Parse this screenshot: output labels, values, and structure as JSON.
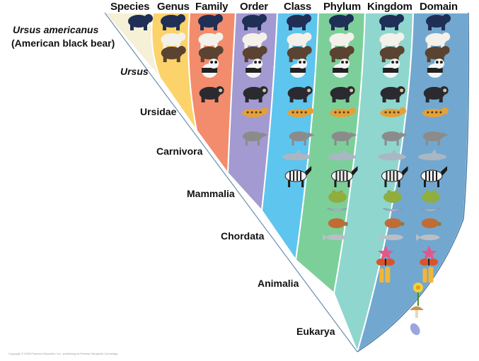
{
  "columns": [
    {
      "id": "species",
      "label": "Species",
      "color": "#f5f0d6"
    },
    {
      "id": "genus",
      "label": "Genus",
      "color": "#fcd36a"
    },
    {
      "id": "family",
      "label": "Family",
      "color": "#f28c6c"
    },
    {
      "id": "order",
      "label": "Order",
      "color": "#a39ad1"
    },
    {
      "id": "class",
      "label": "Class",
      "color": "#5ec5ee"
    },
    {
      "id": "phylum",
      "label": "Phylum",
      "color": "#7dcf9a"
    },
    {
      "id": "kingdom",
      "label": "Kingdom",
      "color": "#8fd6cf"
    },
    {
      "id": "domain",
      "label": "Domain",
      "color": "#72a8cf"
    }
  ],
  "ranks": [
    {
      "id": "species",
      "line1": "Ursus americanus",
      "line2": "(American black bear)",
      "italic": true
    },
    {
      "id": "genus",
      "line1": "Ursus",
      "italic": true
    },
    {
      "id": "family",
      "line1": "Ursidae",
      "italic": false
    },
    {
      "id": "order",
      "line1": "Carnivora",
      "italic": false
    },
    {
      "id": "class",
      "line1": "Mammalia",
      "italic": false
    },
    {
      "id": "phylum",
      "line1": "Chordata",
      "italic": false
    },
    {
      "id": "kingdom",
      "line1": "Animalia",
      "italic": false
    },
    {
      "id": "domain",
      "line1": "Eukarya",
      "italic": false
    }
  ],
  "organisms": [
    {
      "id": "black-bear",
      "color": "#1f2f55",
      "icon": "black-bear-icon"
    },
    {
      "id": "polar-bear",
      "color": "#f4f1ea",
      "icon": "polar-bear-icon"
    },
    {
      "id": "brown-bear",
      "color": "#5a4330",
      "icon": "brown-bear-icon"
    },
    {
      "id": "panda",
      "color": "#222222",
      "icon": "giant-panda-icon"
    },
    {
      "id": "spectacled-bear",
      "color": "#2a2a30",
      "icon": "spectacled-bear-icon"
    },
    {
      "id": "leopard",
      "color": "#e3a13a",
      "icon": "leopard-icon"
    },
    {
      "id": "wolf",
      "color": "#8b8b8b",
      "icon": "wolf-icon"
    },
    {
      "id": "dolphin",
      "color": "#a9b7c4",
      "icon": "dolphin-icon"
    },
    {
      "id": "zebra",
      "color": "#1b1b1b",
      "icon": "zebra-icon"
    },
    {
      "id": "frog",
      "color": "#8fae3e",
      "icon": "frog-icon"
    },
    {
      "id": "bird",
      "color": "#c9d3e6",
      "icon": "bird-icon"
    },
    {
      "id": "turtle",
      "color": "#c06c34",
      "icon": "turtle-icon"
    },
    {
      "id": "fish",
      "color": "#b9bfc6",
      "icon": "fish-icon"
    },
    {
      "id": "starfish",
      "color": "#e4578a",
      "icon": "starfish-icon"
    },
    {
      "id": "butterfly",
      "color": "#d8552a",
      "icon": "butterfly-icon"
    },
    {
      "id": "sponge",
      "color": "#f1b637",
      "icon": "sponge-icon"
    },
    {
      "id": "daffodil",
      "color": "#f3d233",
      "icon": "daffodil-icon"
    },
    {
      "id": "mushroom",
      "color": "#c9964f",
      "icon": "mushroom-icon"
    },
    {
      "id": "protist",
      "color": "#9aa6e0",
      "icon": "protist-icon"
    }
  ],
  "copyright": "Copyright © 2008 Pearson Education, Inc., publishing as Pearson Benjamin Cummings."
}
